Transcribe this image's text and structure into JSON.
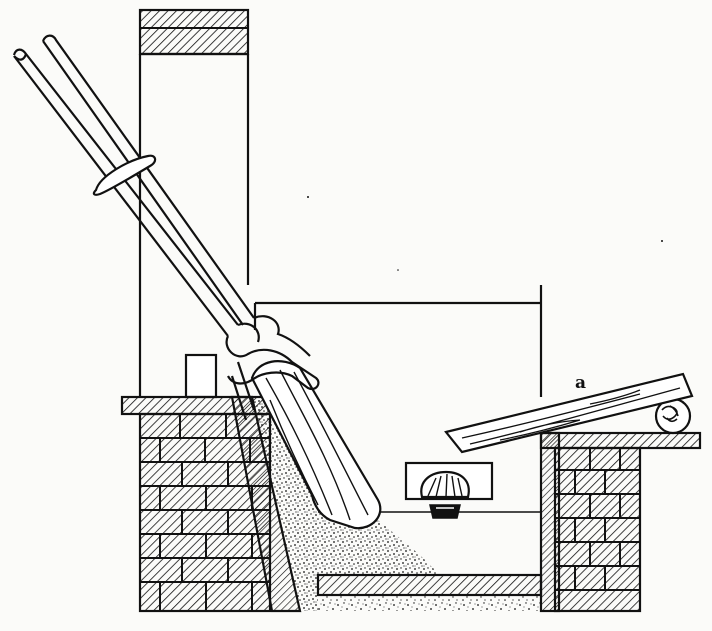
{
  "figure": {
    "labels": [
      {
        "id": "label-a",
        "text": "a"
      }
    ]
  },
  "colors": {
    "ink": "#111111",
    "paper": "#fbfbf9"
  }
}
